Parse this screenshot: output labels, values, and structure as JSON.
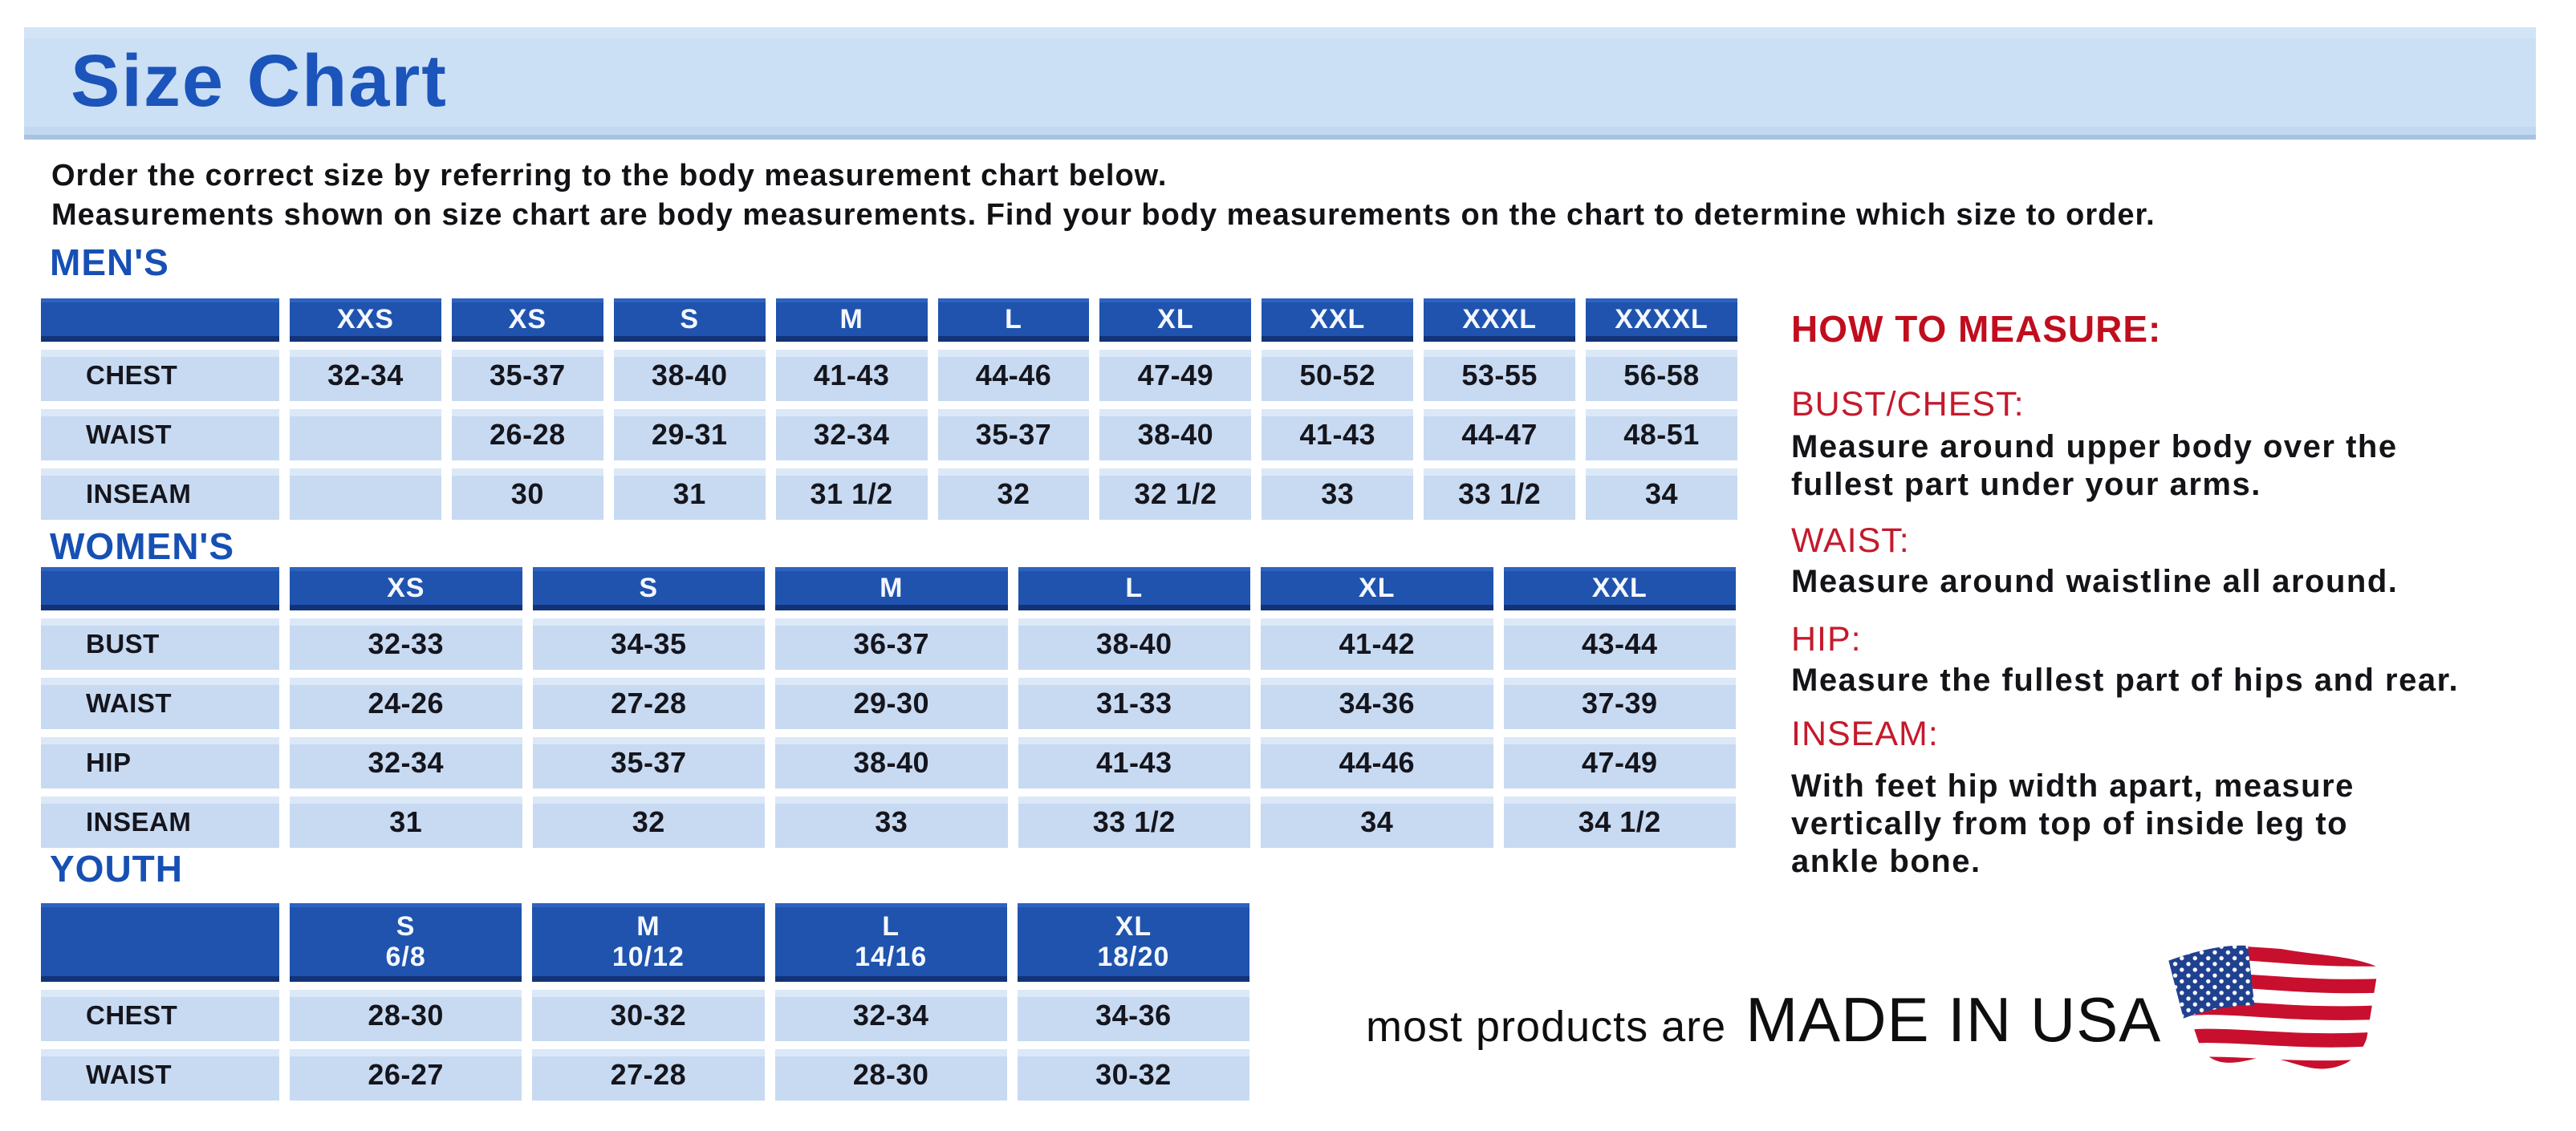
{
  "page": {
    "title": "Size Chart",
    "intro_line1": "Order the correct size by referring to the body measurement chart below.",
    "intro_line2": "Measurements shown on size chart are body measurements.  Find your body measurements on the chart to determine which size to order."
  },
  "tables": {
    "mens": {
      "section_label": "MEN'S",
      "columns": [
        "XXS",
        "XS",
        "S",
        "M",
        "L",
        "XL",
        "XXL",
        "XXXL",
        "XXXXL"
      ],
      "rows": [
        {
          "label": "CHEST",
          "values": [
            "32-34",
            "35-37",
            "38-40",
            "41-43",
            "44-46",
            "47-49",
            "50-52",
            "53-55",
            "56-58"
          ]
        },
        {
          "label": "WAIST",
          "values": [
            "",
            "26-28",
            "29-31",
            "32-34",
            "35-37",
            "38-40",
            "41-43",
            "44-47",
            "48-51"
          ]
        },
        {
          "label": "INSEAM",
          "values": [
            "",
            "30",
            "31",
            "31 1/2",
            "32",
            "32 1/2",
            "33",
            "33 1/2",
            "34"
          ]
        }
      ]
    },
    "womens": {
      "section_label": "WOMEN'S",
      "columns": [
        "XS",
        "S",
        "M",
        "L",
        "XL",
        "XXL"
      ],
      "rows": [
        {
          "label": "BUST",
          "values": [
            "32-33",
            "34-35",
            "36-37",
            "38-40",
            "41-42",
            "43-44"
          ]
        },
        {
          "label": "WAIST",
          "values": [
            "24-26",
            "27-28",
            "29-30",
            "31-33",
            "34-36",
            "37-39"
          ]
        },
        {
          "label": "HIP",
          "values": [
            "32-34",
            "35-37",
            "38-40",
            "41-43",
            "44-46",
            "47-49"
          ]
        },
        {
          "label": "INSEAM",
          "values": [
            "31",
            "32",
            "33",
            "33 1/2",
            "34",
            "34 1/2"
          ]
        }
      ]
    },
    "youth": {
      "section_label": "YOUTH",
      "columns": [
        "S\n6/8",
        "M\n10/12",
        "L\n14/16",
        "XL\n18/20"
      ],
      "rows": [
        {
          "label": "CHEST",
          "values": [
            "28-30",
            "30-32",
            "32-34",
            "34-36"
          ]
        },
        {
          "label": "WAIST",
          "values": [
            "26-27",
            "27-28",
            "28-30",
            "30-32"
          ]
        }
      ]
    }
  },
  "how_to_measure": {
    "heading": "HOW TO MEASURE:",
    "items": [
      {
        "label": "BUST/CHEST:",
        "text": "Measure around upper body over the\nfullest part under your arms."
      },
      {
        "label": "WAIST:",
        "text": "Measure around waistline all around."
      },
      {
        "label": "HIP:",
        "text": "Measure the fullest part of hips and rear."
      },
      {
        "label": "INSEAM:",
        "text": "With feet hip width apart, measure\nvertically from top of inside leg to\nankle bone."
      }
    ]
  },
  "footer": {
    "prefix": "most products are",
    "made_in": "MADE IN USA",
    "flag_icon": "us-flag-icon"
  },
  "colors": {
    "banner_bg": "#CBDFF5",
    "title_blue": "#1B54BA",
    "section_blue": "#1750B4",
    "table_header_bg": "#1F53AE",
    "table_header_border_bottom": "#123377",
    "table_cell_bg": "#C7DAF1",
    "text_dark": "#15151D",
    "red_heading": "#C00E1E",
    "red_sub": "#C41A2C",
    "flag_red": "#C8102E",
    "flag_blue": "#20418F"
  }
}
